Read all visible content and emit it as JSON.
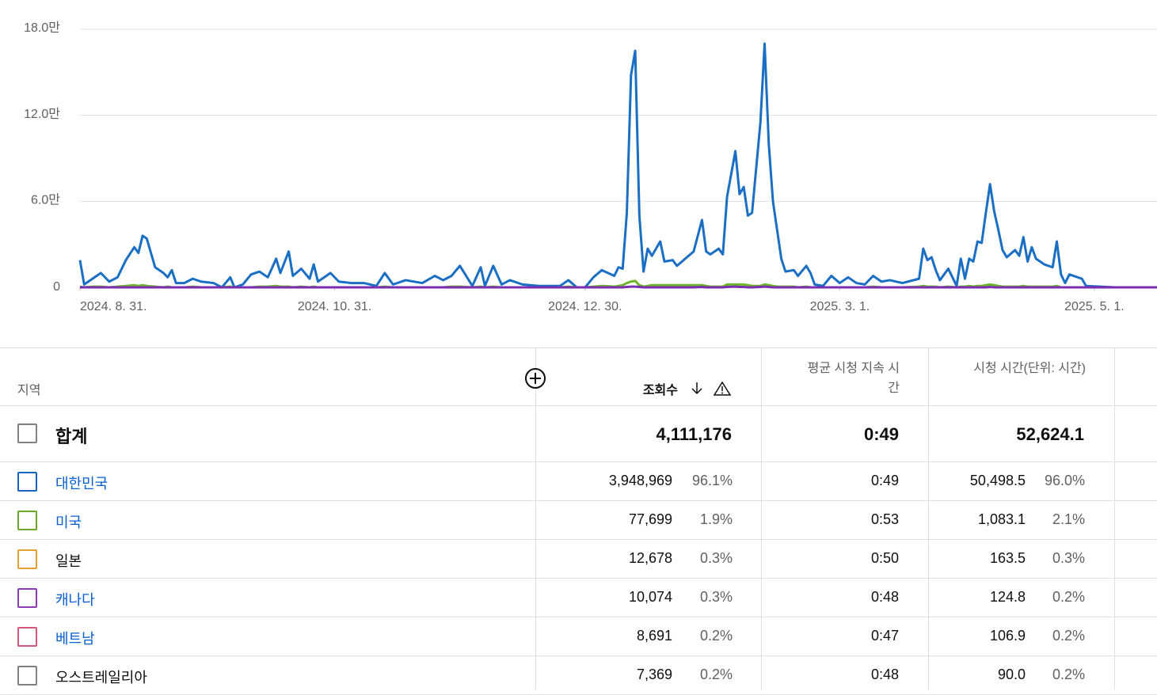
{
  "chart_data": {
    "type": "line",
    "x": [
      "2024-08-31",
      "2024-09-01",
      "2024-09-03",
      "2024-09-05",
      "2024-09-07",
      "2024-09-09",
      "2024-09-11",
      "2024-09-13",
      "2024-09-14",
      "2024-09-15",
      "2024-09-16",
      "2024-09-18",
      "2024-09-20",
      "2024-09-21",
      "2024-09-22",
      "2024-09-23",
      "2024-09-25",
      "2024-09-27",
      "2024-09-29",
      "2024-10-02",
      "2024-10-04",
      "2024-10-06",
      "2024-10-07",
      "2024-10-09",
      "2024-10-11",
      "2024-10-13",
      "2024-10-15",
      "2024-10-17",
      "2024-10-18",
      "2024-10-20",
      "2024-10-21",
      "2024-10-23",
      "2024-10-25",
      "2024-10-26",
      "2024-10-27",
      "2024-10-30",
      "2024-11-01",
      "2024-11-04",
      "2024-11-07",
      "2024-11-10",
      "2024-11-12",
      "2024-11-14",
      "2024-11-17",
      "2024-11-21",
      "2024-11-24",
      "2024-11-26",
      "2024-11-28",
      "2024-11-30",
      "2024-12-03",
      "2024-12-05",
      "2024-12-06",
      "2024-12-08",
      "2024-12-10",
      "2024-12-12",
      "2024-12-15",
      "2024-12-19",
      "2024-12-24",
      "2024-12-26",
      "2024-12-28",
      "2024-12-30",
      "2025-01-01",
      "2025-01-03",
      "2025-01-06",
      "2025-01-07",
      "2025-01-08",
      "2025-01-09",
      "2025-01-10",
      "2025-01-11",
      "2025-01-12",
      "2025-01-13",
      "2025-01-14",
      "2025-01-15",
      "2025-01-17",
      "2025-01-18",
      "2025-01-20",
      "2025-01-21",
      "2025-01-23",
      "2025-01-25",
      "2025-01-27",
      "2025-01-28",
      "2025-01-29",
      "2025-01-31",
      "2025-02-01",
      "2025-02-02",
      "2025-02-04",
      "2025-02-05",
      "2025-02-06",
      "2025-02-07",
      "2025-02-08",
      "2025-02-10",
      "2025-02-11",
      "2025-02-12",
      "2025-02-13",
      "2025-02-14",
      "2025-02-15",
      "2025-02-16",
      "2025-02-18",
      "2025-02-19",
      "2025-02-21",
      "2025-02-22",
      "2025-02-23",
      "2025-02-25",
      "2025-02-27",
      "2025-03-01",
      "2025-03-03",
      "2025-03-05",
      "2025-03-07",
      "2025-03-09",
      "2025-03-11",
      "2025-03-13",
      "2025-03-16",
      "2025-03-20",
      "2025-03-21",
      "2025-03-22",
      "2025-03-23",
      "2025-03-24",
      "2025-03-25",
      "2025-03-27",
      "2025-03-29",
      "2025-03-30",
      "2025-03-31",
      "2025-04-01",
      "2025-04-02",
      "2025-04-03",
      "2025-04-04",
      "2025-04-05",
      "2025-04-06",
      "2025-04-07",
      "2025-04-08",
      "2025-04-09",
      "2025-04-10",
      "2025-04-12",
      "2025-04-13",
      "2025-04-14",
      "2025-04-15",
      "2025-04-16",
      "2025-04-17",
      "2025-04-19",
      "2025-04-21",
      "2025-04-22",
      "2025-04-23",
      "2025-04-24",
      "2025-04-25",
      "2025-04-28",
      "2025-04-29",
      "2025-05-06",
      "2025-05-16"
    ],
    "series": [
      {
        "color": "#1a6fc4",
        "values": [
          19000,
          2000,
          6000,
          10000,
          4000,
          7000,
          19000,
          28000,
          24000,
          36000,
          34000,
          14000,
          10000,
          7000,
          12000,
          3000,
          3000,
          6000,
          4000,
          3000,
          0,
          7000,
          0,
          2000,
          9000,
          11000,
          7000,
          20000,
          10000,
          25000,
          8000,
          13000,
          6000,
          16000,
          4000,
          10000,
          4000,
          3000,
          3000,
          1000,
          10000,
          2000,
          5000,
          3000,
          8000,
          5000,
          8000,
          15000,
          1000,
          14000,
          1000,
          15000,
          2000,
          5000,
          2000,
          1000,
          1000,
          5000,
          0,
          0,
          7000,
          12000,
          8000,
          14000,
          13000,
          52000,
          148000,
          165000,
          50000,
          11000,
          27000,
          22000,
          32000,
          18000,
          19000,
          15000,
          20000,
          25000,
          47000,
          25000,
          23000,
          27000,
          23000,
          63000,
          95000,
          65000,
          70000,
          50000,
          52000,
          115000,
          170000,
          100000,
          60000,
          40000,
          20000,
          11000,
          12000,
          8000,
          15000,
          10000,
          2000,
          1000,
          8000,
          3000,
          7000,
          3000,
          2000,
          8000,
          4000,
          5000,
          3000,
          6000,
          27000,
          19000,
          21000,
          12000,
          5000,
          13000,
          1000,
          20000,
          6000,
          20000,
          18000,
          32000,
          31000,
          52000,
          72000,
          53000,
          40000,
          26000,
          21000,
          26000,
          22000,
          35000,
          18000,
          28000,
          20000,
          16000,
          14000,
          32000,
          9000,
          3000,
          9000,
          6000,
          1000,
          0,
          0
        ]
      },
      {
        "color": "#6bb52a",
        "values": [
          500,
          0,
          500,
          500,
          0,
          500,
          1000,
          1500,
          1000,
          1500,
          1000,
          500,
          0,
          500,
          0,
          0,
          0,
          500,
          0,
          0,
          0,
          500,
          0,
          0,
          0,
          500,
          500,
          1000,
          500,
          500,
          0,
          500,
          0,
          500,
          0,
          0,
          0,
          0,
          0,
          0,
          500,
          0,
          0,
          0,
          0,
          0,
          500,
          500,
          0,
          500,
          0,
          500,
          0,
          0,
          0,
          0,
          0,
          500,
          0,
          0,
          500,
          1000,
          500,
          1000,
          1500,
          3000,
          4000,
          4500,
          1500,
          500,
          1000,
          1500,
          1500,
          1500,
          1500,
          1500,
          1500,
          1500,
          1500,
          1000,
          500,
          500,
          500,
          2000,
          2000,
          2000,
          2000,
          1500,
          1000,
          1000,
          2000,
          1500,
          1000,
          500,
          500,
          500,
          500,
          0,
          500,
          0,
          0,
          0,
          0,
          0,
          0,
          0,
          0,
          500,
          0,
          0,
          0,
          500,
          1000,
          500,
          500,
          500,
          0,
          500,
          0,
          500,
          500,
          1000,
          500,
          1000,
          1000,
          1500,
          2000,
          1500,
          1000,
          500,
          500,
          500,
          500,
          1000,
          500,
          500,
          500,
          500,
          500,
          1000,
          0,
          0,
          0,
          0,
          0,
          0,
          0
        ]
      },
      {
        "color": "#7b2fb0",
        "values": [
          0,
          0,
          0,
          0,
          0,
          0,
          0,
          0,
          0,
          0,
          0,
          0,
          0,
          0,
          0,
          0,
          0,
          0,
          0,
          0,
          0,
          0,
          0,
          0,
          0,
          0,
          0,
          0,
          0,
          0,
          0,
          0,
          0,
          0,
          0,
          0,
          0,
          0,
          0,
          0,
          0,
          0,
          0,
          0,
          0,
          0,
          0,
          0,
          0,
          0,
          0,
          0,
          0,
          0,
          0,
          0,
          0,
          0,
          0,
          0,
          0,
          0,
          0,
          0,
          0,
          300,
          500,
          500,
          300,
          0,
          0,
          0,
          0,
          0,
          0,
          0,
          0,
          0,
          300,
          0,
          0,
          0,
          0,
          300,
          500,
          300,
          300,
          0,
          0,
          300,
          500,
          300,
          0,
          0,
          0,
          0,
          0,
          0,
          0,
          0,
          0,
          0,
          0,
          0,
          0,
          0,
          0,
          0,
          0,
          0,
          0,
          0,
          0,
          0,
          0,
          0,
          0,
          0,
          0,
          0,
          0,
          0,
          0,
          0,
          0,
          0,
          300,
          0,
          0,
          0,
          0,
          0,
          0,
          0,
          0,
          0,
          0,
          0,
          0,
          0,
          0,
          0,
          0,
          0,
          0,
          0,
          0
        ]
      }
    ],
    "xlim": [
      "2024-08-31",
      "2025-05-16"
    ],
    "xticks": [
      {
        "value": "2024-08-31",
        "label": "2024. 8. 31."
      },
      {
        "value": "2024-10-31",
        "label": "2024. 10. 31."
      },
      {
        "value": "2024-12-30",
        "label": "2024. 12. 30."
      },
      {
        "value": "2025-03-01",
        "label": "2025. 3. 1."
      },
      {
        "value": "2025-05-01",
        "label": "2025. 5. 1."
      }
    ],
    "ylim": [
      0,
      180000
    ],
    "yticks": [
      0,
      {
        "value": 60000,
        "label": "6.0만"
      },
      {
        "value": 120000,
        "label": "12.0만"
      },
      {
        "value": 180000,
        "label": "18.0만"
      }
    ],
    "grid": true
  },
  "table": {
    "headers": [
      "지역",
      "조회수",
      "평균 시청 지속 시간",
      "시청 시간(단위: 시간)"
    ],
    "total": {
      "label": "합계",
      "views": "4,111,176",
      "avg_view_duration": "0:49",
      "watch_time": "52,624.1"
    },
    "rows": [
      {
        "region": "대한민국",
        "color": "#1565c0",
        "linked": true,
        "views": "3,948,969",
        "views_share": "96.1%",
        "avg_view_duration": "0:49",
        "watch_time": "50,498.5",
        "watch_time_share": "96.0%"
      },
      {
        "region": "미국",
        "color": "#6aa82a",
        "linked": true,
        "views": "77,699",
        "views_share": "1.9%",
        "avg_view_duration": "0:53",
        "watch_time": "1,083.1",
        "watch_time_share": "2.1%"
      },
      {
        "region": "일본",
        "color": "#e3a02a",
        "linked": false,
        "views": "12,678",
        "views_share": "0.3%",
        "avg_view_duration": "0:50",
        "watch_time": "163.5",
        "watch_time_share": "0.3%"
      },
      {
        "region": "캐나다",
        "color": "#8e3cb5",
        "linked": true,
        "views": "10,074",
        "views_share": "0.3%",
        "avg_view_duration": "0:48",
        "watch_time": "124.8",
        "watch_time_share": "0.2%"
      },
      {
        "region": "베트남",
        "color": "#d4577a",
        "linked": true,
        "views": "8,691",
        "views_share": "0.2%",
        "avg_view_duration": "0:47",
        "watch_time": "106.9",
        "watch_time_share": "0.2%"
      },
      {
        "region": "오스트레일리아",
        "color": "#808080",
        "linked": false,
        "views": "7,369",
        "views_share": "0.2%",
        "avg_view_duration": "0:48",
        "watch_time": "90.0",
        "watch_time_share": "0.2%"
      }
    ]
  }
}
